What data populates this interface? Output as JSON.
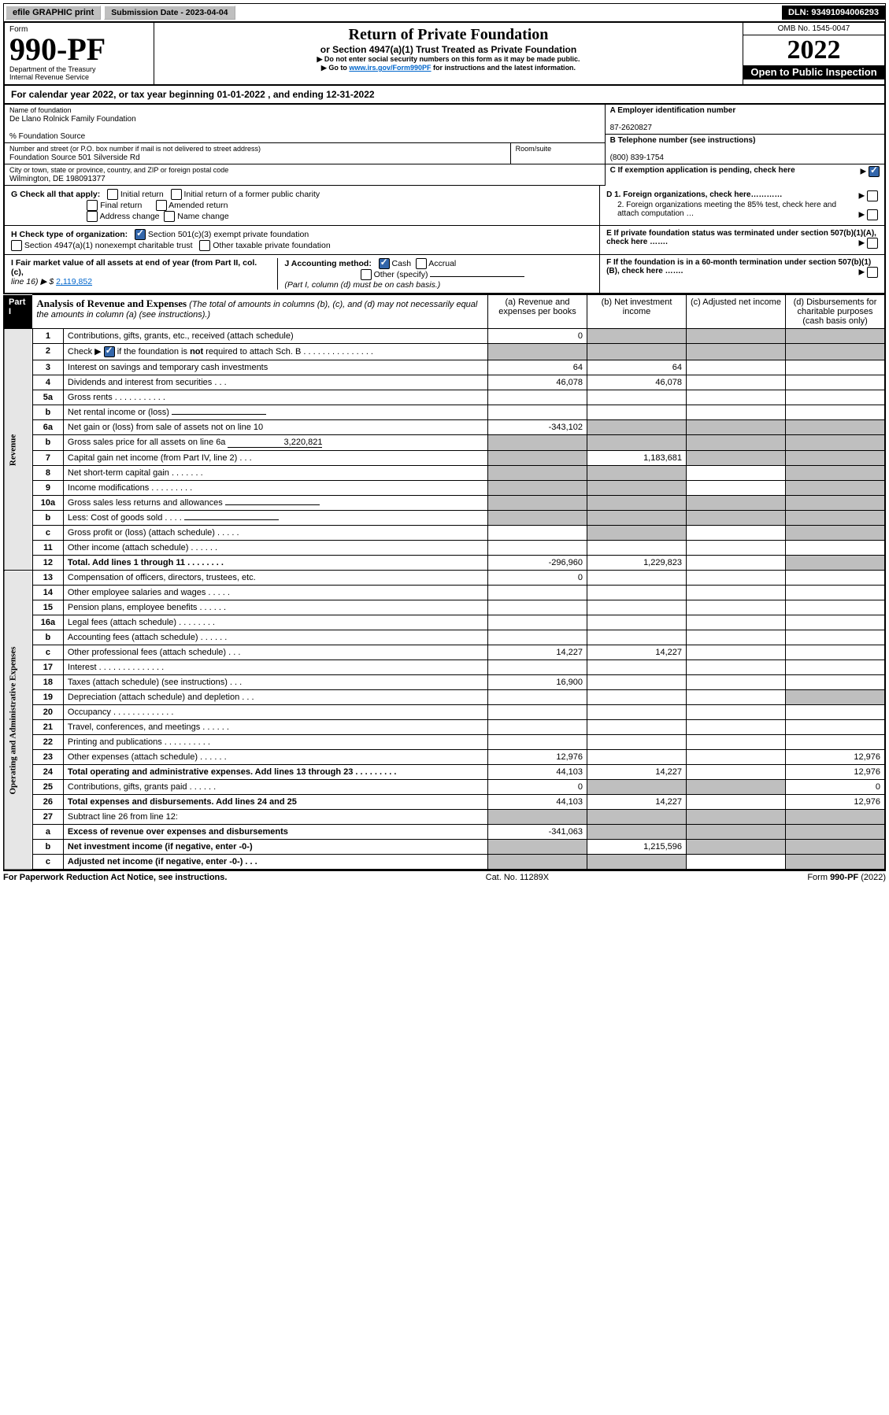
{
  "topbar": {
    "efile": "efile GRAPHIC print",
    "submission": "Submission Date - 2023-04-04",
    "dln": "DLN: 93491094006293"
  },
  "header": {
    "form_word": "Form",
    "form_no": "990-PF",
    "dept": "Department of the Treasury",
    "irs": "Internal Revenue Service",
    "title": "Return of Private Foundation",
    "subtitle": "or Section 4947(a)(1) Trust Treated as Private Foundation",
    "note1": "▶ Do not enter social security numbers on this form as it may be made public.",
    "note2_pre": "▶ Go to ",
    "note2_link": "www.irs.gov/Form990PF",
    "note2_post": " for instructions and the latest information.",
    "omb": "OMB No. 1545-0047",
    "year": "2022",
    "open": "Open to Public Inspection"
  },
  "taxyear": "For calendar year 2022, or tax year beginning 01-01-2022                          , and ending 12-31-2022",
  "info": {
    "name_label": "Name of foundation",
    "name": "De Llano Rolnick Family Foundation",
    "care_of": "% Foundation Source",
    "addr_label": "Number and street (or P.O. box number if mail is not delivered to street address)",
    "addr": "Foundation Source 501 Silverside Rd",
    "room_label": "Room/suite",
    "city_label": "City or town, state or province, country, and ZIP or foreign postal code",
    "city": "Wilmington, DE  198091377",
    "A_label": "A Employer identification number",
    "A_val": "87-2620827",
    "B_label": "B Telephone number (see instructions)",
    "B_val": "(800) 839-1754",
    "C_label": "C  If exemption application is pending, check here",
    "D1": "D 1. Foreign organizations, check here…………",
    "D2": "2. Foreign organizations meeting the 85% test, check here and attach computation …",
    "E": "E  If private foundation status was terminated under section 507(b)(1)(A), check here …….",
    "F": "F  If the foundation is in a 60-month termination under section 507(b)(1)(B), check here …….",
    "G_label": "G Check all that apply:",
    "G_opts": [
      "Initial return",
      "Initial return of a former public charity",
      "Final return",
      "Amended return",
      "Address change",
      "Name change"
    ],
    "H_label": "H Check type of organization:",
    "H_opts": [
      "Section 501(c)(3) exempt private foundation",
      "Section 4947(a)(1) nonexempt charitable trust",
      "Other taxable private foundation"
    ],
    "I_label": "I Fair market value of all assets at end of year (from Part II, col. (c),",
    "I_line": "line 16) ▶ $ ",
    "I_val": "2,119,852",
    "J_label": "J Accounting method:",
    "J_cash": "Cash",
    "J_accrual": "Accrual",
    "J_other": "Other (specify)",
    "J_note": "(Part I, column (d) must be on cash basis.)"
  },
  "part1": {
    "label": "Part I",
    "desc_b": "Analysis of Revenue and Expenses",
    "desc": " (The total of amounts in columns (b), (c), and (d) may not necessarily equal the amounts in column (a) (see instructions).)",
    "cols": [
      "(a)   Revenue and expenses per books",
      "(b)   Net investment income",
      "(c)   Adjusted net income",
      "(d)   Disbursements for charitable purposes (cash basis only)"
    ]
  },
  "rows": [
    {
      "n": "1",
      "t": "Contributions, gifts, grants, etc., received (attach schedule)",
      "a": "0",
      "b": "",
      "c": "",
      "d": "",
      "grayB": true,
      "grayC": true,
      "grayD": true
    },
    {
      "n": "2",
      "t": "Check ▶ ☑ if the foundation is not required to attach Sch. B   .   .   .   .   .   .   .   .   .   .   .   .   .   .   .",
      "plain": true
    },
    {
      "n": "3",
      "t": "Interest on savings and temporary cash investments",
      "a": "64",
      "b": "64"
    },
    {
      "n": "4",
      "t": "Dividends and interest from securities   .   .   .",
      "a": "46,078",
      "b": "46,078"
    },
    {
      "n": "5a",
      "t": "Gross rents   .   .   .   .   .   .   .   .   .   .   .",
      "a": "",
      "b": ""
    },
    {
      "n": "b",
      "t": "Net rental income or (loss)  ",
      "inline": true
    },
    {
      "n": "6a",
      "t": "Net gain or (loss) from sale of assets not on line 10",
      "a": "-343,102",
      "grayB": true,
      "grayC": true,
      "grayD": true
    },
    {
      "n": "b",
      "t": "Gross sales price for all assets on line 6a",
      "inline_val": "3,220,821",
      "grayA": true,
      "grayB": true,
      "grayC": true,
      "grayD": true
    },
    {
      "n": "7",
      "t": "Capital gain net income (from Part IV, line 2)   .   .   .",
      "grayA": true,
      "b": "1,183,681",
      "grayC": true,
      "grayD": true
    },
    {
      "n": "8",
      "t": "Net short-term capital gain   .   .   .   .   .   .   .",
      "grayA": true,
      "grayB": true,
      "grayD": true
    },
    {
      "n": "9",
      "t": "Income modifications  .   .   .   .   .   .   .   .   .",
      "grayA": true,
      "grayB": true,
      "grayD": true
    },
    {
      "n": "10a",
      "t": "Gross sales less returns and allowances",
      "inline": true,
      "grayA": true,
      "grayB": true,
      "grayC": true,
      "grayD": true
    },
    {
      "n": "b",
      "t": "Less: Cost of goods sold   .   .   .   .",
      "inline": true,
      "grayA": true,
      "grayB": true,
      "grayC": true,
      "grayD": true
    },
    {
      "n": "c",
      "t": "Gross profit or (loss) (attach schedule)    .   .   .   .   .",
      "grayB": true,
      "grayD": true
    },
    {
      "n": "11",
      "t": "Other income (attach schedule)    .   .   .   .   .   .",
      "a": "",
      "b": ""
    },
    {
      "n": "12",
      "t": "Total. Add lines 1 through 11   .   .   .   .   .   .   .   .",
      "bold": true,
      "a": "-296,960",
      "b": "1,229,823",
      "grayD": true
    },
    {
      "n": "13",
      "t": "Compensation of officers, directors, trustees, etc.",
      "a": "0"
    },
    {
      "n": "14",
      "t": "Other employee salaries and wages   .   .   .   .   ."
    },
    {
      "n": "15",
      "t": "Pension plans, employee benefits  .   .   .   .   .   ."
    },
    {
      "n": "16a",
      "t": "Legal fees (attach schedule)  .   .   .   .   .   .   .   ."
    },
    {
      "n": "b",
      "t": "Accounting fees (attach schedule)  .   .   .   .   .   ."
    },
    {
      "n": "c",
      "t": "Other professional fees (attach schedule)    .   .   .",
      "a": "14,227",
      "b": "14,227"
    },
    {
      "n": "17",
      "t": "Interest  .   .   .   .   .   .   .   .   .   .   .   .   .   ."
    },
    {
      "n": "18",
      "t": "Taxes (attach schedule) (see instructions)    .   .   .",
      "a": "16,900"
    },
    {
      "n": "19",
      "t": "Depreciation (attach schedule) and depletion    .   .   .",
      "grayD": true
    },
    {
      "n": "20",
      "t": "Occupancy  .   .   .   .   .   .   .   .   .   .   .   .   ."
    },
    {
      "n": "21",
      "t": "Travel, conferences, and meetings  .   .   .   .   .   ."
    },
    {
      "n": "22",
      "t": "Printing and publications  .   .   .   .   .   .   .   .   .   ."
    },
    {
      "n": "23",
      "t": "Other expenses (attach schedule)  .   .   .   .   .   .",
      "a": "12,976",
      "d": "12,976"
    },
    {
      "n": "24",
      "t": "Total operating and administrative expenses. Add lines 13 through 23   .   .   .   .   .   .   .   .   .",
      "bold": true,
      "a": "44,103",
      "b": "14,227",
      "d": "12,976"
    },
    {
      "n": "25",
      "t": "Contributions, gifts, grants paid    .   .   .   .   .   .",
      "a": "0",
      "grayB": true,
      "grayC": true,
      "d": "0"
    },
    {
      "n": "26",
      "t": "Total expenses and disbursements. Add lines 24 and 25",
      "bold": true,
      "a": "44,103",
      "b": "14,227",
      "d": "12,976"
    },
    {
      "n": "27",
      "t": "Subtract line 26 from line 12:",
      "grayA": true,
      "grayB": true,
      "grayC": true,
      "grayD": true
    },
    {
      "n": "a",
      "t": "Excess of revenue over expenses and disbursements",
      "bold": true,
      "a": "-341,063",
      "grayB": true,
      "grayC": true,
      "grayD": true
    },
    {
      "n": "b",
      "t": "Net investment income (if negative, enter -0-)",
      "bold": true,
      "grayA": true,
      "b": "1,215,596",
      "grayC": true,
      "grayD": true
    },
    {
      "n": "c",
      "t": "Adjusted net income (if negative, enter -0-)   .   .   .",
      "bold": true,
      "grayA": true,
      "grayB": true,
      "grayD": true
    }
  ],
  "rotate_labels": {
    "rev": "Revenue",
    "exp": "Operating and Administrative Expenses"
  },
  "footer": {
    "left": "For Paperwork Reduction Act Notice, see instructions.",
    "mid": "Cat. No. 11289X",
    "right": "Form 990-PF (2022)"
  },
  "style": {
    "link_color": "#0066cc",
    "gray_cell": "#bfbfbf",
    "gray_bg": "#e6e6e6"
  }
}
